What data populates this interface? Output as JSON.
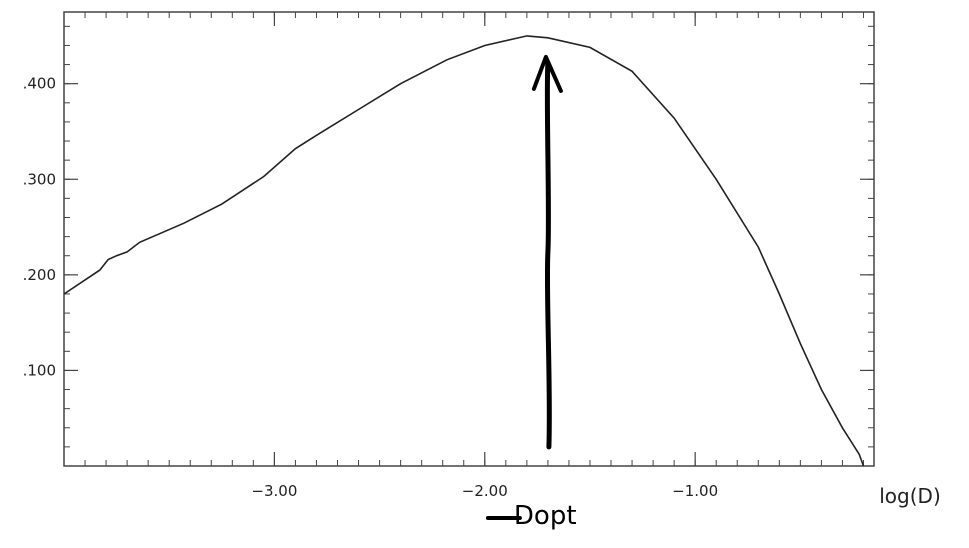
{
  "chart_data": {
    "type": "line",
    "title": "",
    "xlabel": "log(D)",
    "ylabel": "",
    "xlim": [
      -4.0,
      -0.15
    ],
    "ylim": [
      0.0,
      0.475
    ],
    "grid": false,
    "legend": "none",
    "x_ticks": [
      {
        "value": -3.0,
        "label": "−3.00"
      },
      {
        "value": -2.0,
        "label": "−2.00"
      },
      {
        "value": -1.0,
        "label": "−1.00"
      }
    ],
    "y_ticks": [
      {
        "value": 0.1,
        "label": ".100"
      },
      {
        "value": 0.2,
        "label": ".200"
      },
      {
        "value": 0.3,
        "label": ".300"
      },
      {
        "value": 0.4,
        "label": ".400"
      }
    ],
    "series": [
      {
        "color": "#222222",
        "points": [
          [
            -4.0,
            0.18
          ],
          [
            -3.83,
            0.205
          ],
          [
            -3.79,
            0.216
          ],
          [
            -3.75,
            0.22
          ],
          [
            -3.7,
            0.224
          ],
          [
            -3.64,
            0.234
          ],
          [
            -3.43,
            0.254
          ],
          [
            -3.25,
            0.274
          ],
          [
            -3.05,
            0.303
          ],
          [
            -2.9,
            0.332
          ],
          [
            -2.8,
            0.346
          ],
          [
            -2.6,
            0.373
          ],
          [
            -2.4,
            0.4
          ],
          [
            -2.18,
            0.425
          ],
          [
            -2.0,
            0.44
          ],
          [
            -1.8,
            0.45
          ],
          [
            -1.7,
            0.448
          ],
          [
            -1.5,
            0.438
          ],
          [
            -1.3,
            0.413
          ],
          [
            -1.1,
            0.364
          ],
          [
            -0.9,
            0.3
          ],
          [
            -0.7,
            0.229
          ],
          [
            -0.6,
            0.18
          ],
          [
            -0.5,
            0.128
          ],
          [
            -0.4,
            0.08
          ],
          [
            -0.3,
            0.04
          ],
          [
            -0.22,
            0.012
          ],
          [
            -0.2,
            0.0
          ]
        ]
      }
    ],
    "annotation": {
      "text": "Dopt",
      "x": -1.7,
      "y_start": 0.02,
      "y_end": 0.428,
      "color": "#000000"
    }
  }
}
